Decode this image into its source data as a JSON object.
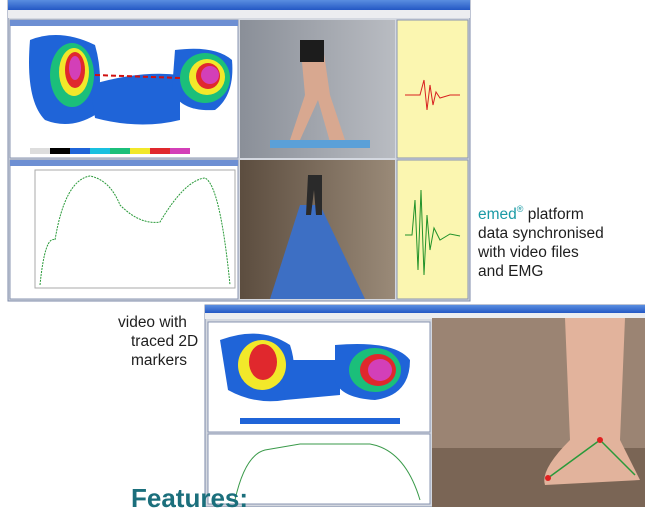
{
  "caption_sync": {
    "brand": "emed",
    "mark": "®",
    "lines": [
      "platform",
      "data synchronised",
      "with video files",
      "and EMG"
    ]
  },
  "caption_markers": {
    "lines": [
      "video with",
      "traced 2D",
      "markers"
    ]
  },
  "heading": "Features:"
}
